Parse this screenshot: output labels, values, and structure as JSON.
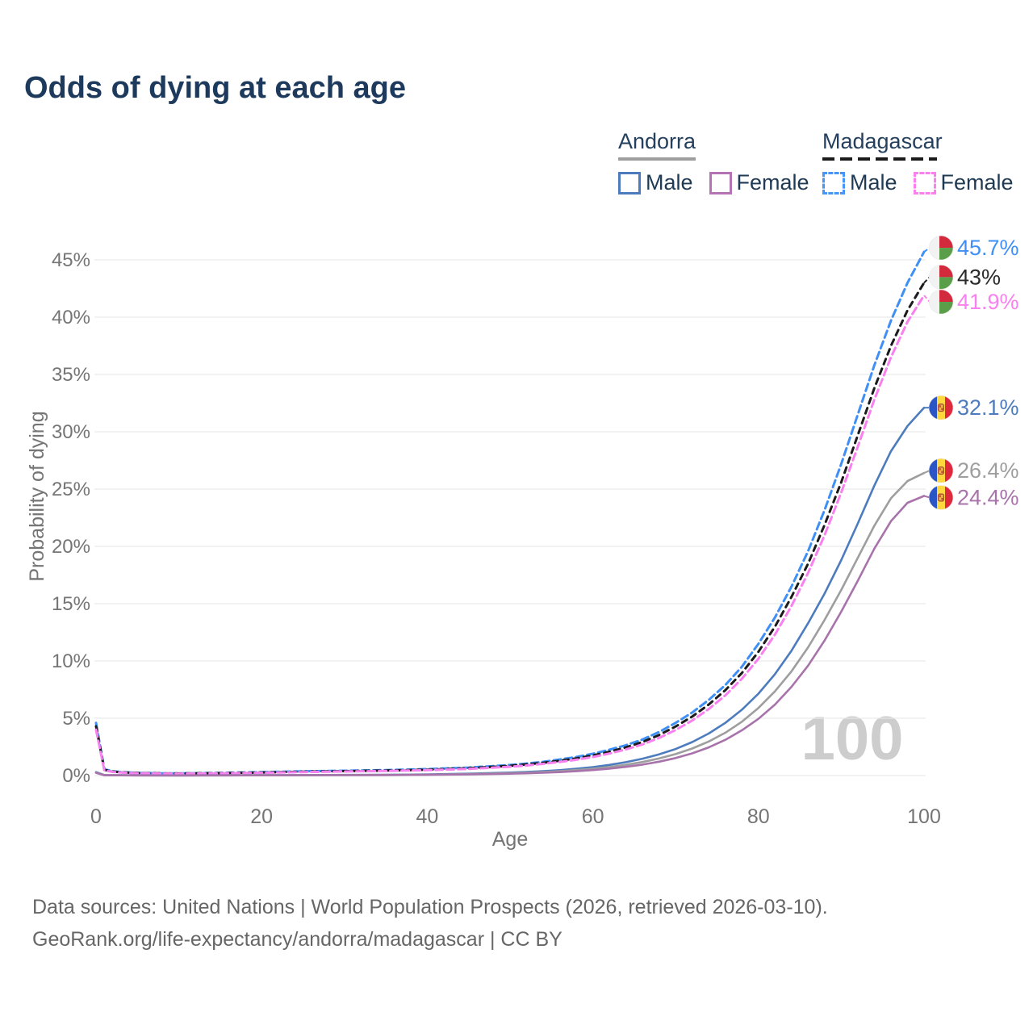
{
  "title": "Odds of dying at each age",
  "watermark": "100",
  "footer": {
    "line1": "Data sources: United Nations | World Population Prospects (2026, retrieved 2026-03-10).",
    "line2": "GeoRank.org/life-expectancy/andorra/madagascar | CC BY"
  },
  "legend": {
    "groups": [
      {
        "name": "Andorra",
        "line_style": "solid",
        "underline_color": "#9e9e9e",
        "underline_width": 96,
        "items": [
          {
            "label": "Male",
            "color": "#4d7cbe"
          },
          {
            "label": "Female",
            "color": "#b474b4"
          }
        ]
      },
      {
        "name": "Madagascar",
        "line_style": "dashed",
        "underline_color": "#1b1b1b",
        "underline_width": 142,
        "items": [
          {
            "label": "Male",
            "color": "#4596f7"
          },
          {
            "label": "Female",
            "color": "#fb80ee"
          }
        ]
      }
    ]
  },
  "chart_data": {
    "type": "line",
    "title": "Odds of dying at each age",
    "xlabel": "Age",
    "ylabel": "Probability of dying",
    "xlim": [
      0,
      100
    ],
    "ylim": [
      0,
      46
    ],
    "grid": true,
    "x_ticks": [
      0,
      20,
      40,
      60,
      80,
      100
    ],
    "y_ticks": [
      {
        "value": 0,
        "label": "0%"
      },
      {
        "value": 5,
        "label": "5%"
      },
      {
        "value": 10,
        "label": "10%"
      },
      {
        "value": 15,
        "label": "15%"
      },
      {
        "value": 20,
        "label": "20%"
      },
      {
        "value": 25,
        "label": "25%"
      },
      {
        "value": 30,
        "label": "30%"
      },
      {
        "value": 35,
        "label": "35%"
      },
      {
        "value": 40,
        "label": "40%"
      },
      {
        "value": 45,
        "label": "45%"
      }
    ],
    "x": [
      0,
      1,
      2,
      3,
      5,
      8,
      10,
      15,
      20,
      25,
      30,
      35,
      40,
      45,
      50,
      52,
      54,
      56,
      58,
      60,
      62,
      64,
      66,
      68,
      70,
      72,
      74,
      76,
      78,
      80,
      82,
      84,
      86,
      88,
      90,
      92,
      94,
      96,
      98,
      100
    ],
    "series": [
      {
        "name": "Madagascar Male",
        "country": "Madagascar",
        "sex": "Male",
        "line_style": "dashed",
        "color": "#3f8ff5",
        "label_color": "#3f8ff5",
        "end_label": "45.7%",
        "flag": "mg",
        "values": [
          4.6,
          0.55,
          0.38,
          0.3,
          0.24,
          0.2,
          0.19,
          0.23,
          0.3,
          0.37,
          0.42,
          0.48,
          0.56,
          0.7,
          0.92,
          1.05,
          1.2,
          1.4,
          1.62,
          1.9,
          2.25,
          2.65,
          3.15,
          3.8,
          4.6,
          5.5,
          6.6,
          7.9,
          9.5,
          11.5,
          13.8,
          16.5,
          19.6,
          23.2,
          27.2,
          31.5,
          35.8,
          39.7,
          43.0,
          45.7
        ]
      },
      {
        "name": "Madagascar Both sexes",
        "country": "Madagascar",
        "sex": "Both",
        "line_style": "dashed",
        "color": "#1b1b1b",
        "label_color": "#2b2b2b",
        "end_label": "43%",
        "flag": "mg",
        "values": [
          4.3,
          0.5,
          0.35,
          0.28,
          0.22,
          0.19,
          0.18,
          0.21,
          0.27,
          0.34,
          0.39,
          0.44,
          0.51,
          0.64,
          0.85,
          0.97,
          1.11,
          1.29,
          1.5,
          1.76,
          2.08,
          2.46,
          2.93,
          3.54,
          4.28,
          5.15,
          6.2,
          7.45,
          8.95,
          10.8,
          13.0,
          15.6,
          18.5,
          21.9,
          25.6,
          29.7,
          33.8,
          37.5,
          40.6,
          43.0
        ]
      },
      {
        "name": "Madagascar Female",
        "country": "Madagascar",
        "sex": "Female",
        "line_style": "dashed",
        "color": "#f980ef",
        "label_color": "#f980ef",
        "end_label": "41.9%",
        "flag": "mg",
        "values": [
          4.0,
          0.45,
          0.32,
          0.26,
          0.2,
          0.17,
          0.16,
          0.19,
          0.24,
          0.3,
          0.35,
          0.4,
          0.47,
          0.58,
          0.77,
          0.88,
          1.02,
          1.18,
          1.38,
          1.62,
          1.92,
          2.28,
          2.72,
          3.28,
          3.98,
          4.8,
          5.8,
          7.0,
          8.45,
          10.2,
          12.3,
          14.8,
          17.7,
          21.0,
          24.7,
          28.7,
          32.8,
          36.5,
          39.6,
          41.9
        ]
      },
      {
        "name": "Andorra Male",
        "country": "Andorra",
        "sex": "Male",
        "line_style": "solid",
        "color": "#4d7cbe",
        "label_color": "#4d7cbe",
        "end_label": "32.1%",
        "flag": "ad",
        "values": [
          0.3,
          0.04,
          0.03,
          0.025,
          0.02,
          0.016,
          0.015,
          0.022,
          0.035,
          0.045,
          0.055,
          0.07,
          0.1,
          0.16,
          0.26,
          0.31,
          0.38,
          0.47,
          0.59,
          0.74,
          0.93,
          1.17,
          1.47,
          1.85,
          2.32,
          2.92,
          3.67,
          4.6,
          5.75,
          7.15,
          8.85,
          10.9,
          13.3,
          15.9,
          18.8,
          22.0,
          25.3,
          28.3,
          30.5,
          32.1
        ]
      },
      {
        "name": "Andorra Both sexes",
        "country": "Andorra",
        "sex": "Both",
        "line_style": "solid",
        "color": "#9e9e9e",
        "label_color": "#9e9e9e",
        "end_label": "26.4%",
        "flag": "ad",
        "values": [
          0.27,
          0.035,
          0.026,
          0.021,
          0.017,
          0.013,
          0.012,
          0.017,
          0.027,
          0.035,
          0.043,
          0.056,
          0.08,
          0.13,
          0.21,
          0.25,
          0.31,
          0.38,
          0.48,
          0.6,
          0.75,
          0.94,
          1.18,
          1.49,
          1.87,
          2.36,
          2.97,
          3.74,
          4.7,
          5.9,
          7.35,
          9.1,
          11.2,
          13.6,
          16.2,
          19.0,
          21.8,
          24.2,
          25.7,
          26.4
        ]
      },
      {
        "name": "Andorra Female",
        "country": "Andorra",
        "sex": "Female",
        "line_style": "solid",
        "color": "#a873ab",
        "label_color": "#a873ab",
        "end_label": "24.4%",
        "flag": "ad",
        "values": [
          0.24,
          0.03,
          0.022,
          0.018,
          0.014,
          0.011,
          0.01,
          0.013,
          0.02,
          0.027,
          0.034,
          0.045,
          0.065,
          0.1,
          0.165,
          0.2,
          0.245,
          0.3,
          0.38,
          0.48,
          0.6,
          0.76,
          0.96,
          1.21,
          1.53,
          1.94,
          2.46,
          3.12,
          3.95,
          4.95,
          6.2,
          7.75,
          9.6,
          11.8,
          14.3,
          17.0,
          19.8,
          22.2,
          23.8,
          24.4
        ]
      }
    ],
    "flag_colors": {
      "andorra_blue": "#2b55c4",
      "andorra_yellow": "#ffd83d",
      "andorra_red": "#e0283c",
      "madagascar_white": "#f2f2f2",
      "madagascar_red": "#d2293d",
      "madagascar_green": "#5a9e49"
    }
  }
}
